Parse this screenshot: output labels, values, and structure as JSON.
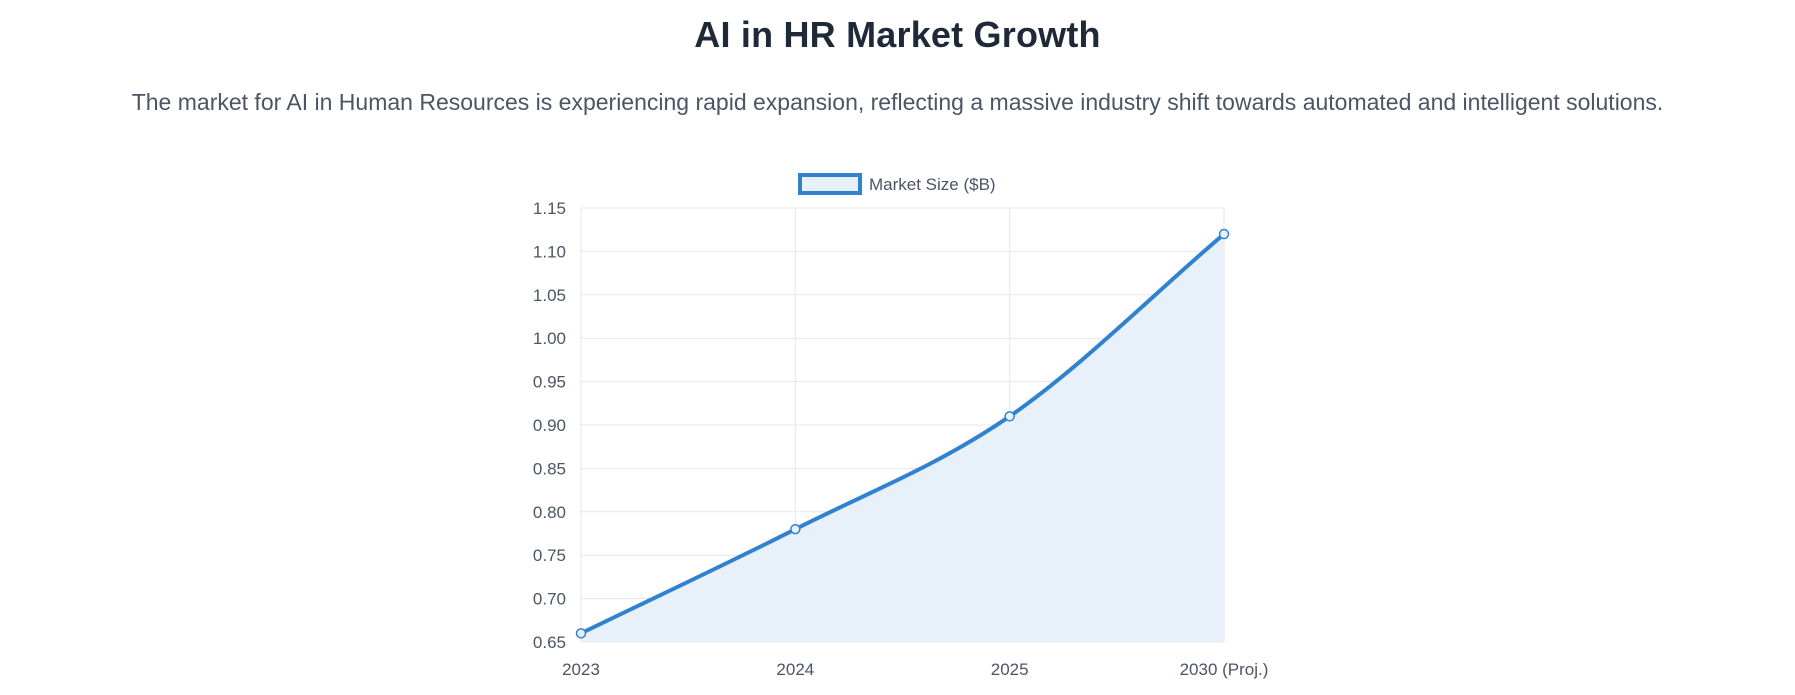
{
  "header": {
    "title": "AI in HR Market Growth",
    "subtitle": "The market for AI in Human Resources is experiencing rapid expansion, reflecting a massive industry shift towards automated and intelligent solutions."
  },
  "chart_data": {
    "type": "line",
    "categories": [
      "2023",
      "2024",
      "2025",
      "2030 (Proj.)"
    ],
    "series": [
      {
        "name": "Market Size ($B)",
        "values": [
          0.66,
          0.78,
          0.91,
          1.12
        ],
        "color": "#3182ce",
        "fill": "#e8f1fa"
      }
    ],
    "ylim": [
      0.65,
      1.15
    ],
    "yticks": [
      "0.65",
      "0.70",
      "0.75",
      "0.80",
      "0.85",
      "0.90",
      "0.95",
      "1.00",
      "1.05",
      "1.10",
      "1.15"
    ],
    "grid": true,
    "legend": "top-center"
  }
}
